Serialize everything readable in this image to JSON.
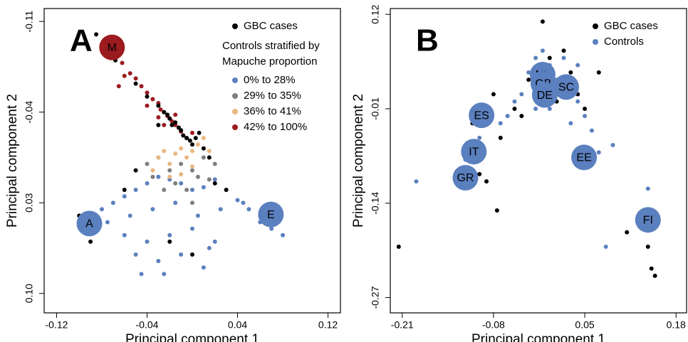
{
  "chart_data": [
    {
      "type": "scatter",
      "panel_label": "A",
      "xlabel": "Principal component 1",
      "ylabel": "Principal component 2",
      "xlim": [
        -0.131,
        0.131
      ],
      "xticks": [
        -0.12,
        -0.04,
        0.04,
        0.12
      ],
      "ylim": [
        -0.12,
        0.115
      ],
      "yticks": [
        -0.11,
        -0.04,
        0.03,
        {
          "value": 0.1,
          "label": "0.10"
        }
      ],
      "y_inverted": true,
      "legend_title": [
        "Controls stratified by",
        "Mapuche  proportion"
      ],
      "series": [
        {
          "name": "GBC cases",
          "color": "#000000",
          "x": [
            -0.085,
            -0.075,
            -0.068,
            -0.05,
            -0.04,
            -0.03,
            -0.025,
            -0.02,
            -0.015,
            -0.012,
            -0.01,
            -0.008,
            -0.005,
            -0.002,
            0.0,
            0.003,
            0.006,
            -0.018,
            -0.022,
            -0.03,
            0.01,
            0.015,
            -0.05,
            -0.06,
            0.02,
            -0.1,
            -0.09,
            0.0,
            -0.02,
            0.03
          ],
          "values": [
            -0.1,
            -0.095,
            -0.08,
            -0.062,
            -0.052,
            -0.045,
            -0.04,
            -0.035,
            -0.032,
            -0.028,
            -0.026,
            -0.022,
            -0.02,
            -0.018,
            -0.015,
            -0.02,
            -0.024,
            -0.03,
            -0.038,
            -0.03,
            -0.012,
            -0.005,
            0.005,
            0.02,
            0.015,
            0.04,
            0.06,
            0.07,
            0.06,
            0.02
          ]
        },
        {
          "name": "0% to 28%",
          "color": "#5b80bf",
          "x": [
            -0.1,
            -0.09,
            -0.08,
            -0.07,
            -0.06,
            -0.05,
            -0.04,
            -0.03,
            -0.02,
            -0.01,
            0.0,
            0.01,
            0.02,
            0.03,
            0.04,
            0.05,
            0.06,
            -0.075,
            -0.055,
            -0.035,
            -0.015,
            0.005,
            0.025,
            0.045,
            -0.06,
            -0.04,
            -0.02,
            0.0,
            0.02,
            -0.03,
            -0.01,
            0.01,
            -0.05,
            0.07,
            0.08,
            -0.045,
            -0.025,
            0.015
          ],
          "values": [
            0.045,
            0.04,
            0.035,
            0.03,
            0.025,
            0.02,
            0.015,
            0.01,
            0.012,
            0.015,
            0.02,
            0.018,
            0.012,
            0.02,
            0.028,
            0.035,
            0.045,
            0.045,
            0.04,
            0.035,
            0.03,
            0.04,
            0.035,
            0.03,
            0.055,
            0.06,
            0.055,
            0.05,
            0.06,
            0.075,
            0.07,
            0.08,
            0.07,
            0.05,
            0.055,
            0.085,
            0.085,
            0.065
          ]
        },
        {
          "name": "29% to 35%",
          "color": "#7f7f7f",
          "x": [
            -0.04,
            -0.03,
            -0.02,
            -0.01,
            0.0,
            0.01,
            0.02,
            -0.015,
            -0.005,
            0.005,
            -0.025,
            0.0,
            -0.035,
            0.015
          ],
          "values": [
            0.0,
            -0.005,
            0.005,
            0.0,
            0.005,
            -0.005,
            0.0,
            0.015,
            0.02,
            0.01,
            0.02,
            0.03,
            0.01,
            0.012
          ]
        },
        {
          "name": "36% to 41%",
          "color": "#e8b880",
          "x": [
            -0.03,
            -0.025,
            -0.02,
            -0.015,
            -0.01,
            -0.005,
            0.0,
            0.005,
            0.01,
            -0.035,
            -0.02,
            -0.01,
            0.0,
            0.015
          ],
          "values": [
            -0.005,
            -0.01,
            0.0,
            -0.008,
            -0.012,
            -0.005,
            -0.01,
            -0.015,
            -0.02,
            0.005,
            0.01,
            0.008,
            0.002,
            -0.01
          ]
        },
        {
          "name": "42% to 100%",
          "color": "#9b1b1f",
          "x": [
            -0.062,
            -0.055,
            -0.05,
            -0.045,
            -0.04,
            -0.035,
            -0.03,
            -0.028,
            -0.025,
            -0.022,
            -0.02,
            -0.018,
            -0.015,
            -0.012,
            -0.01,
            -0.008,
            -0.005,
            -0.03,
            -0.04,
            -0.06,
            -0.065,
            -0.015,
            -0.025,
            0.0
          ],
          "values": [
            -0.078,
            -0.07,
            -0.066,
            -0.06,
            -0.055,
            -0.05,
            -0.047,
            -0.042,
            -0.04,
            -0.037,
            -0.035,
            -0.033,
            -0.03,
            -0.028,
            -0.025,
            -0.022,
            -0.02,
            -0.036,
            -0.045,
            -0.068,
            -0.06,
            -0.038,
            -0.03,
            -0.024
          ]
        }
      ],
      "annotations": [
        {
          "label": "M",
          "x": -0.071,
          "y": -0.09,
          "color": "#9b1b1f"
        },
        {
          "label": "A",
          "x": -0.091,
          "y": 0.046,
          "color": "#5b80bf"
        },
        {
          "label": "E",
          "x": 0.0695,
          "y": 0.039,
          "color": "#5b80bf"
        }
      ]
    },
    {
      "type": "scatter",
      "panel_label": "B",
      "xlabel": "Principal component 1",
      "ylabel": "Principal component 2",
      "xlim": [
        -0.227,
        0.195
      ],
      "xticks": [
        -0.21,
        -0.08,
        0.05,
        0.18
      ],
      "ylim": [
        -0.291,
        0.128
      ],
      "yticks": [
        0.12,
        -0.01,
        -0.14,
        -0.27
      ],
      "series": [
        {
          "name": "GBC cases",
          "color": "#000000",
          "x": [
            -0.01,
            0.0,
            0.02,
            0.03,
            0.04,
            -0.03,
            -0.05,
            -0.08,
            -0.1,
            -0.11,
            -0.12,
            0.01,
            0.05,
            0.07,
            -0.07,
            -0.04,
            -0.215,
            -0.075,
            0.11,
            0.14,
            0.145,
            0.15,
            -0.1,
            -0.09
          ],
          "values": [
            0.11,
            0.06,
            0.07,
            0.04,
            0.01,
            0.03,
            -0.01,
            0.01,
            -0.01,
            -0.03,
            -0.07,
            0.0,
            -0.01,
            0.04,
            -0.05,
            -0.02,
            -0.2,
            -0.15,
            -0.18,
            -0.2,
            -0.23,
            -0.24,
            -0.1,
            -0.11
          ]
        },
        {
          "name": "Controls",
          "color": "#5b80bf",
          "x": [
            -0.03,
            -0.02,
            -0.01,
            0.0,
            0.01,
            0.02,
            0.03,
            0.04,
            0.05,
            -0.04,
            -0.05,
            -0.06,
            -0.07,
            -0.1,
            -0.12,
            0.06,
            0.07,
            0.09,
            0.03,
            0.0,
            -0.02,
            0.04,
            -0.19,
            0.14,
            0.08
          ],
          "values": [
            0.04,
            0.06,
            0.07,
            0.05,
            0.03,
            0.06,
            0.02,
            0.0,
            -0.02,
            0.01,
            0.0,
            -0.02,
            -0.03,
            -0.05,
            -0.08,
            -0.04,
            -0.07,
            -0.06,
            -0.03,
            -0.01,
            -0.01,
            0.05,
            -0.11,
            -0.12,
            -0.2
          ]
        }
      ],
      "annotations": [
        {
          "label": "NL",
          "x": -0.01,
          "y": 0.037,
          "color": "#5b80bf"
        },
        {
          "label": "GB",
          "x": -0.009,
          "y": 0.025,
          "color": "#5b80bf"
        },
        {
          "label": "SC",
          "x": 0.0235,
          "y": 0.02,
          "color": "#5b80bf"
        },
        {
          "label": "DE",
          "x": -0.007,
          "y": 0.009,
          "color": "#5b80bf"
        },
        {
          "label": "ES",
          "x": -0.097,
          "y": -0.019,
          "color": "#5b80bf"
        },
        {
          "label": "IT",
          "x": -0.108,
          "y": -0.069,
          "color": "#5b80bf"
        },
        {
          "label": "GR",
          "x": -0.12,
          "y": -0.105,
          "color": "#5b80bf"
        },
        {
          "label": "EE",
          "x": 0.049,
          "y": -0.077,
          "color": "#5b80bf"
        },
        {
          "label": "FI",
          "x": 0.14,
          "y": -0.163,
          "color": "#5b80bf"
        }
      ]
    }
  ]
}
